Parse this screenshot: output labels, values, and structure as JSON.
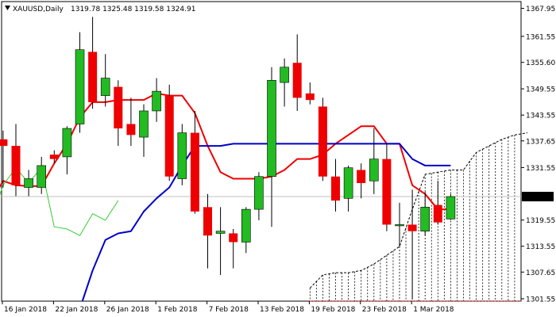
{
  "header": {
    "symbol": "XAUUSD,Daily",
    "ohlc": "1319.78 1325.48 1319.58 1324.91"
  },
  "colors": {
    "background": "#ffffff",
    "frame": "#000000",
    "bull_candle": "#22bb22",
    "bear_candle": "#ee0000",
    "wick": "#000000",
    "tenkan": "#ee0000",
    "kijun": "#0000cc",
    "chikou": "#33cc33",
    "cloud": "#000000",
    "price_line": "#c0c0c0",
    "price_tag_bg": "#000000",
    "price_tag_text": "#ffffff"
  },
  "chart_data": {
    "type": "candlestick",
    "title": "XAUUSD,Daily",
    "last_price_label": "1324.91",
    "y_ticks": [
      "1367.95",
      "1361.55",
      "1355.60",
      "1349.55",
      "1343.55",
      "1337.65",
      "1331.55",
      "1319.55",
      "1313.55",
      "1307.65",
      "1301.55"
    ],
    "y_tick_values": [
      1367.95,
      1361.55,
      1355.6,
      1349.55,
      1343.55,
      1337.65,
      1331.55,
      1319.55,
      1313.55,
      1307.65,
      1301.55
    ],
    "ylim": [
      1301.0,
      1369.5
    ],
    "x_ticks": [
      {
        "label": "16 Jan 2018",
        "index": 0
      },
      {
        "label": "22 Jan 2018",
        "index": 4
      },
      {
        "label": "26 Jan 2018",
        "index": 8
      },
      {
        "label": "1 Feb 2018",
        "index": 12
      },
      {
        "label": "7 Feb 2018",
        "index": 16
      },
      {
        "label": "13 Feb 2018",
        "index": 20
      },
      {
        "label": "19 Feb 2018",
        "index": 24
      },
      {
        "label": "23 Feb 2018",
        "index": 28
      },
      {
        "label": "1 Mar 2018",
        "index": 32
      }
    ],
    "candles": [
      {
        "i": -1,
        "o": 1338.0,
        "h": 1340.0,
        "l": 1327.0,
        "c": 1336.5
      },
      {
        "i": 0,
        "o": 1336.5,
        "h": 1341.5,
        "l": 1325.0,
        "c": 1327.5
      },
      {
        "i": 1,
        "o": 1327.0,
        "h": 1331.0,
        "l": 1325.0,
        "c": 1329.0
      },
      {
        "i": 2,
        "o": 1327.0,
        "h": 1334.0,
        "l": 1325.5,
        "c": 1332.0
      },
      {
        "i": 3,
        "o": 1334.5,
        "h": 1335.5,
        "l": 1332.5,
        "c": 1333.5
      },
      {
        "i": 4,
        "o": 1334.0,
        "h": 1341.0,
        "l": 1330.0,
        "c": 1340.5
      },
      {
        "i": 5,
        "o": 1341.5,
        "h": 1362.5,
        "l": 1339.5,
        "c": 1358.5
      },
      {
        "i": 6,
        "o": 1358.0,
        "h": 1366.0,
        "l": 1345.0,
        "c": 1346.5
      },
      {
        "i": 7,
        "o": 1348.0,
        "h": 1357.5,
        "l": 1345.5,
        "c": 1352.0
      },
      {
        "i": 8,
        "o": 1350.0,
        "h": 1351.5,
        "l": 1336.5,
        "c": 1340.5
      },
      {
        "i": 9,
        "o": 1341.5,
        "h": 1347.5,
        "l": 1336.5,
        "c": 1339.0
      },
      {
        "i": 10,
        "o": 1338.5,
        "h": 1346.0,
        "l": 1334.0,
        "c": 1344.5
      },
      {
        "i": 11,
        "o": 1344.5,
        "h": 1352.0,
        "l": 1342.0,
        "c": 1349.0
      },
      {
        "i": 12,
        "o": 1348.0,
        "h": 1350.5,
        "l": 1328.5,
        "c": 1329.5
      },
      {
        "i": 13,
        "o": 1329.0,
        "h": 1341.5,
        "l": 1327.5,
        "c": 1339.5
      },
      {
        "i": 14,
        "o": 1339.5,
        "h": 1344.5,
        "l": 1321.0,
        "c": 1321.5
      },
      {
        "i": 15,
        "o": 1322.5,
        "h": 1325.5,
        "l": 1308.5,
        "c": 1316.0
      },
      {
        "i": 16,
        "o": 1316.5,
        "h": 1322.5,
        "l": 1307.0,
        "c": 1317.0
      },
      {
        "i": 17,
        "o": 1316.5,
        "h": 1317.5,
        "l": 1308.5,
        "c": 1314.5
      },
      {
        "i": 18,
        "o": 1314.5,
        "h": 1322.5,
        "l": 1312.0,
        "c": 1322.0
      },
      {
        "i": 19,
        "o": 1322.0,
        "h": 1330.5,
        "l": 1319.5,
        "c": 1329.5
      },
      {
        "i": 20,
        "o": 1329.5,
        "h": 1354.5,
        "l": 1318.0,
        "c": 1351.5
      },
      {
        "i": 21,
        "o": 1351.0,
        "h": 1356.5,
        "l": 1345.5,
        "c": 1354.5
      },
      {
        "i": 22,
        "o": 1355.5,
        "h": 1362.0,
        "l": 1344.5,
        "c": 1347.5
      },
      {
        "i": 23,
        "o": 1348.5,
        "h": 1351.0,
        "l": 1346.0,
        "c": 1347.0
      },
      {
        "i": 24,
        "o": 1345.5,
        "h": 1347.5,
        "l": 1328.5,
        "c": 1329.5
      },
      {
        "i": 25,
        "o": 1329.5,
        "h": 1333.5,
        "l": 1321.5,
        "c": 1324.0
      },
      {
        "i": 26,
        "o": 1324.5,
        "h": 1332.0,
        "l": 1321.5,
        "c": 1331.5
      },
      {
        "i": 27,
        "o": 1331.0,
        "h": 1332.5,
        "l": 1324.5,
        "c": 1328.0
      },
      {
        "i": 28,
        "o": 1328.5,
        "h": 1340.5,
        "l": 1325.5,
        "c": 1333.5
      },
      {
        "i": 29,
        "o": 1333.5,
        "h": 1337.0,
        "l": 1317.0,
        "c": 1318.5
      },
      {
        "i": 30,
        "o": 1318.5,
        "h": 1323.5,
        "l": 1313.5,
        "c": 1318.5
      },
      {
        "i": 31,
        "o": 1318.5,
        "h": 1326.5,
        "l": 1301.5,
        "c": 1317.0
      },
      {
        "i": 32,
        "o": 1317.0,
        "h": 1326.0,
        "l": 1316.0,
        "c": 1322.5
      },
      {
        "i": 33,
        "o": 1323.0,
        "h": 1328.5,
        "l": 1318.5,
        "c": 1319.0
      },
      {
        "i": 34,
        "o": 1319.78,
        "h": 1325.48,
        "l": 1319.58,
        "c": 1324.91
      }
    ],
    "series": [
      {
        "values": [
          [
            -1.3,
            1327.0
          ],
          [
            -1,
            1328.5
          ],
          [
            0,
            1327.5
          ],
          [
            1,
            1327.3
          ],
          [
            2,
            1327.3
          ],
          [
            3,
            1332.5
          ],
          [
            4,
            1337.0
          ],
          [
            5,
            1343.0
          ],
          [
            6,
            1346.5
          ],
          [
            7,
            1346.5
          ],
          [
            8,
            1347.0
          ],
          [
            9,
            1347.0
          ],
          [
            10,
            1347.0
          ],
          [
            11,
            1348.5
          ],
          [
            12,
            1348.0
          ],
          [
            13,
            1348.0
          ],
          [
            14,
            1344.0
          ],
          [
            15,
            1336.5
          ],
          [
            16,
            1330.5
          ],
          [
            17,
            1329.0
          ],
          [
            18,
            1329.0
          ],
          [
            19,
            1329.0
          ],
          [
            20,
            1329.5
          ],
          [
            21,
            1331.0
          ],
          [
            22,
            1333.5
          ],
          [
            23,
            1333.5
          ],
          [
            24,
            1334.5
          ],
          [
            25,
            1337.0
          ],
          [
            26,
            1339.0
          ],
          [
            27,
            1341.0
          ],
          [
            28,
            1341.0
          ],
          [
            29,
            1337.0
          ],
          [
            30,
            1337.0
          ],
          [
            31,
            1327.5
          ],
          [
            32,
            1325.5
          ],
          [
            33,
            1322.0
          ],
          [
            34,
            1322.0
          ]
        ]
      },
      {
        "values": [
          [
            5.2,
            1301.0
          ],
          [
            6,
            1308.0
          ],
          [
            7,
            1315.0
          ],
          [
            8,
            1316.5
          ],
          [
            9,
            1317.0
          ],
          [
            10,
            1321.5
          ],
          [
            11,
            1324.5
          ],
          [
            12,
            1327.0
          ],
          [
            13,
            1332.0
          ],
          [
            14,
            1336.5
          ],
          [
            15,
            1336.5
          ],
          [
            16,
            1336.5
          ],
          [
            17,
            1337.0
          ],
          [
            18,
            1337.0
          ],
          [
            19,
            1337.0
          ],
          [
            20,
            1337.0
          ],
          [
            21,
            1337.0
          ],
          [
            22,
            1337.0
          ],
          [
            23,
            1337.0
          ],
          [
            24,
            1337.0
          ],
          [
            25,
            1337.0
          ],
          [
            26,
            1337.0
          ],
          [
            27,
            1337.0
          ],
          [
            28,
            1337.0
          ],
          [
            29,
            1337.0
          ],
          [
            30,
            1337.0
          ],
          [
            31,
            1333.5
          ],
          [
            32,
            1332.0
          ],
          [
            33,
            1332.0
          ],
          [
            34,
            1332.0
          ]
        ]
      },
      {
        "values": [
          [
            -1.3,
            1325.0
          ],
          [
            -1,
            1327.5
          ],
          [
            0,
            1331.5
          ],
          [
            1,
            1328.0
          ],
          [
            2,
            1331.5
          ],
          [
            3,
            1318.0
          ],
          [
            4,
            1317.5
          ],
          [
            5,
            1316.0
          ],
          [
            6,
            1321.0
          ],
          [
            7,
            1319.5
          ],
          [
            8,
            1324.0
          ]
        ]
      }
    ],
    "cloud": {
      "upper": [
        [
          23,
          1304.0
        ],
        [
          24,
          1307.0
        ],
        [
          25,
          1307.5
        ],
        [
          26,
          1307.5
        ],
        [
          27,
          1308.0
        ],
        [
          28,
          1309.5
        ],
        [
          29,
          1311.5
        ],
        [
          30,
          1313.5
        ],
        [
          31,
          1322.0
        ],
        [
          32,
          1330.0
        ],
        [
          33,
          1330.5
        ],
        [
          34,
          1331.0
        ],
        [
          35,
          1331.0
        ],
        [
          36,
          1335.0
        ],
        [
          37,
          1336.5
        ],
        [
          38,
          1338.0
        ],
        [
          39,
          1339.0
        ],
        [
          40,
          1339.5
        ]
      ],
      "lower": 1301.0
    }
  }
}
